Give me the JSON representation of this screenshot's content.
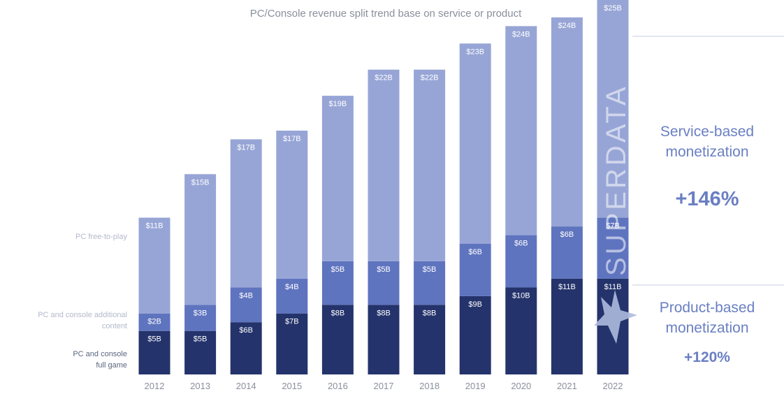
{
  "chart_data": {
    "type": "bar",
    "stacked": true,
    "title": "PC/Console revenue split trend base on service or product",
    "categories": [
      "2012",
      "2013",
      "2014",
      "2015",
      "2016",
      "2017",
      "2018",
      "2019",
      "2020",
      "2021",
      "2022"
    ],
    "series": [
      {
        "name": "PC and console full game",
        "color": "#24336b",
        "values": [
          5,
          5,
          6,
          7,
          8,
          8,
          8,
          9,
          10,
          11,
          11
        ],
        "labels": [
          "$5B",
          "$5B",
          "$6B",
          "$7B",
          "$8B",
          "$8B",
          "$8B",
          "$9B",
          "$10B",
          "$11B",
          "$11B"
        ]
      },
      {
        "name": "PC and console additional content",
        "color": "#5f74bf",
        "values": [
          2,
          3,
          4,
          4,
          5,
          5,
          5,
          6,
          6,
          6,
          7
        ],
        "labels": [
          "$2B",
          "$3B",
          "$4B",
          "$4B",
          "$5B",
          "$5B",
          "$5B",
          "$6B",
          "$6B",
          "$6B",
          "$7B"
        ]
      },
      {
        "name": "PC free-to-play",
        "color": "#97a5d6",
        "values": [
          11,
          15,
          17,
          17,
          19,
          22,
          22,
          23,
          24,
          24,
          25
        ],
        "labels": [
          "$11B",
          "$15B",
          "$17B",
          "$17B",
          "$19B",
          "$22B",
          "$22B",
          "$23B",
          "$24B",
          "$24B",
          "$25B"
        ]
      }
    ],
    "ylim": [
      0,
      43
    ],
    "grid": false,
    "legend": "left",
    "annotations": {
      "service": {
        "label_line1": "Service-based",
        "label_line2": "monetization",
        "change": "+146%"
      },
      "product": {
        "label_line1": "Product-based",
        "label_line2": "monetization",
        "change": "+120%"
      }
    },
    "watermark": "SUPERDATA"
  },
  "colors": {
    "text_muted": "#8a8f9c",
    "accent": "#6a7fc2"
  }
}
